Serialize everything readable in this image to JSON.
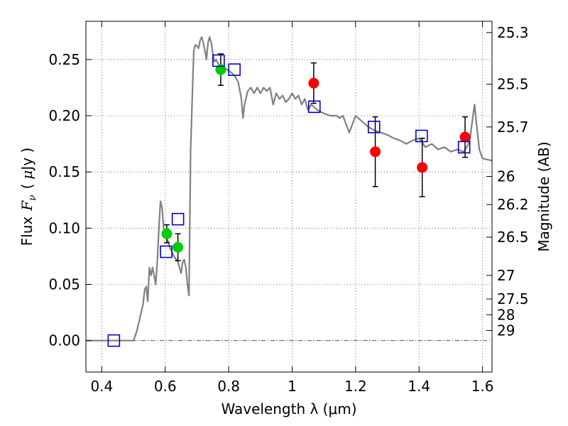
{
  "chart_data": {
    "type": "scatter",
    "title": "",
    "xlabel": "Wavelength  λ (μm)",
    "ylabel_text": "Flux",
    "ylabel_math": "F",
    "ylabel_math_sub": "ν",
    "ylabel_unit_open": "(",
    "ylabel_unit_mu": "μ",
    "ylabel_unit_rest": "Jy )",
    "y2label": "Magnitude (AB)",
    "xlim": [
      0.35,
      1.63
    ],
    "ylim": [
      -0.028,
      0.284
    ],
    "grid": true,
    "x_ticks": [
      0.4,
      0.6,
      0.8,
      1.0,
      1.2,
      1.4,
      1.6
    ],
    "x_tick_labels": [
      "0.4",
      "0.6",
      "0.8",
      "1",
      "1.2",
      "1.4",
      "1.6"
    ],
    "y_ticks": [
      0.0,
      0.05,
      0.1,
      0.15,
      0.2,
      0.25
    ],
    "y_tick_labels": [
      "0.00",
      "0.05",
      "0.10",
      "0.15",
      "0.20",
      "0.25"
    ],
    "y2_ticks": [
      {
        "flux": 0.274,
        "label": "25.3"
      },
      {
        "flux": 0.228,
        "label": "25.5"
      },
      {
        "flux": 0.19,
        "label": "25.7"
      },
      {
        "flux": 0.146,
        "label": "26"
      },
      {
        "flux": 0.121,
        "label": "26.2"
      },
      {
        "flux": 0.092,
        "label": "26.5"
      },
      {
        "flux": 0.058,
        "label": "27"
      },
      {
        "flux": 0.037,
        "label": "27.5"
      },
      {
        "flux": 0.023,
        "label": "28"
      },
      {
        "flux": 0.009,
        "label": "29"
      }
    ],
    "colors": {
      "model": "#808080",
      "green": "#00cc00",
      "red": "#ff0000",
      "square": "#0000cc",
      "errorbar": "#000000",
      "grid": "#555555"
    },
    "model_spectrum": {
      "x": [
        0.35,
        0.5,
        0.51,
        0.52,
        0.53,
        0.535,
        0.54,
        0.545,
        0.55,
        0.555,
        0.56,
        0.565,
        0.57,
        0.575,
        0.58,
        0.585,
        0.59,
        0.595,
        0.6,
        0.605,
        0.61,
        0.615,
        0.62,
        0.625,
        0.63,
        0.635,
        0.64,
        0.645,
        0.65,
        0.655,
        0.66,
        0.665,
        0.67,
        0.675,
        0.68,
        0.69,
        0.695,
        0.7,
        0.705,
        0.71,
        0.715,
        0.72,
        0.725,
        0.73,
        0.735,
        0.74,
        0.745,
        0.75,
        0.755,
        0.76,
        0.77,
        0.78,
        0.79,
        0.8,
        0.81,
        0.82,
        0.83,
        0.84,
        0.845,
        0.85,
        0.86,
        0.87,
        0.88,
        0.89,
        0.9,
        0.91,
        0.92,
        0.93,
        0.94,
        0.95,
        0.96,
        0.97,
        0.98,
        0.99,
        1.0,
        1.01,
        1.02,
        1.03,
        1.04,
        1.05,
        1.06,
        1.08,
        1.1,
        1.12,
        1.14,
        1.15,
        1.16,
        1.18,
        1.2,
        1.22,
        1.24,
        1.26,
        1.28,
        1.3,
        1.32,
        1.34,
        1.36,
        1.38,
        1.4,
        1.42,
        1.44,
        1.46,
        1.48,
        1.5,
        1.52,
        1.54,
        1.55,
        1.56,
        1.57,
        1.575,
        1.58,
        1.59,
        1.6,
        1.63
      ],
      "y": [
        0.0,
        0.0,
        0.008,
        0.02,
        0.032,
        0.045,
        0.048,
        0.035,
        0.065,
        0.058,
        0.065,
        0.058,
        0.05,
        0.07,
        0.1,
        0.124,
        0.118,
        0.1,
        0.095,
        0.09,
        0.088,
        0.082,
        0.08,
        0.076,
        0.074,
        0.072,
        0.07,
        0.065,
        0.06,
        0.07,
        0.072,
        0.065,
        0.05,
        0.04,
        0.17,
        0.258,
        0.263,
        0.262,
        0.26,
        0.267,
        0.27,
        0.265,
        0.258,
        0.25,
        0.265,
        0.27,
        0.265,
        0.255,
        0.248,
        0.25,
        0.245,
        0.242,
        0.242,
        0.24,
        0.238,
        0.235,
        0.23,
        0.215,
        0.198,
        0.21,
        0.222,
        0.225,
        0.22,
        0.225,
        0.22,
        0.225,
        0.222,
        0.225,
        0.21,
        0.22,
        0.215,
        0.218,
        0.212,
        0.215,
        0.22,
        0.215,
        0.218,
        0.21,
        0.215,
        0.205,
        0.21,
        0.205,
        0.202,
        0.2,
        0.2,
        0.198,
        0.2,
        0.185,
        0.2,
        0.195,
        0.19,
        0.187,
        0.185,
        0.183,
        0.18,
        0.178,
        0.175,
        0.178,
        0.18,
        0.172,
        0.175,
        0.17,
        0.172,
        0.168,
        0.17,
        0.168,
        0.172,
        0.178,
        0.2,
        0.21,
        0.195,
        0.17,
        0.162,
        0.16
      ]
    },
    "green_points": [
      {
        "x": 0.605,
        "y": 0.095,
        "err": 0.008
      },
      {
        "x": 0.64,
        "y": 0.083,
        "err": 0.012
      },
      {
        "x": 0.775,
        "y": 0.241,
        "err": 0.014
      }
    ],
    "red_points": [
      {
        "x": 1.068,
        "y": 0.229,
        "err": 0.018
      },
      {
        "x": 1.262,
        "y": 0.168,
        "err": 0.031
      },
      {
        "x": 1.41,
        "y": 0.154,
        "err": 0.026
      },
      {
        "x": 1.545,
        "y": 0.181,
        "err": 0.018
      }
    ],
    "model_squares": [
      {
        "x": 0.438,
        "y": 0.0
      },
      {
        "x": 0.603,
        "y": 0.079
      },
      {
        "x": 0.64,
        "y": 0.108
      },
      {
        "x": 0.768,
        "y": 0.249
      },
      {
        "x": 0.818,
        "y": 0.241
      },
      {
        "x": 1.07,
        "y": 0.208
      },
      {
        "x": 1.258,
        "y": 0.19
      },
      {
        "x": 1.408,
        "y": 0.182
      },
      {
        "x": 1.542,
        "y": 0.172
      }
    ]
  }
}
